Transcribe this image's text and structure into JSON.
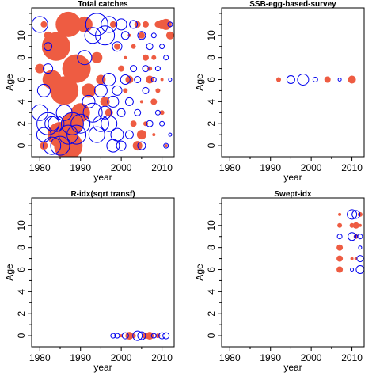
{
  "chart_data": [
    {
      "type": "scatter",
      "title": "Total catches",
      "xlabel": "year",
      "ylabel": "Age",
      "xlim": [
        1978,
        2013
      ],
      "ylim": [
        -1,
        12.5
      ],
      "xticks": [
        1980,
        1990,
        2000,
        2010
      ],
      "yticks": [
        0,
        2,
        4,
        6,
        8,
        10
      ],
      "series": [
        {
          "color": "#ee5c42",
          "points": [
            [
              1987,
              0,
              18
            ],
            [
              1985,
              1,
              16
            ],
            [
              1988,
              2,
              14
            ],
            [
              1990,
              3,
              12
            ],
            [
              1986,
              5,
              18
            ],
            [
              1989,
              7,
              18
            ],
            [
              1984,
              9,
              18
            ],
            [
              1987,
              11,
              16
            ],
            [
              1991,
              11,
              10
            ],
            [
              1983,
              6,
              12
            ],
            [
              1992,
              5,
              9
            ],
            [
              1994,
              8,
              7
            ],
            [
              1995,
              6,
              6
            ],
            [
              1996,
              4,
              6
            ],
            [
              1997,
              3,
              5
            ],
            [
              1998,
              11,
              4
            ],
            [
              1999,
              9,
              4
            ],
            [
              2000,
              7,
              4
            ],
            [
              2002,
              6,
              5
            ],
            [
              2003,
              2,
              4
            ],
            [
              2004,
              0,
              6
            ],
            [
              2005,
              10,
              4
            ],
            [
              2006,
              8,
              4
            ],
            [
              2007,
              6,
              5
            ],
            [
              2008,
              4,
              4
            ],
            [
              2009,
              11,
              4
            ],
            [
              2010,
              11,
              6
            ],
            [
              2011,
              11,
              7
            ],
            [
              2012,
              10,
              5
            ],
            [
              2005,
              1,
              6
            ],
            [
              2006,
              2,
              3
            ],
            [
              2003,
              9,
              3
            ],
            [
              2001,
              5,
              3
            ],
            [
              2008,
              8,
              3
            ],
            [
              2010,
              3,
              3
            ],
            [
              2007,
              7,
              3
            ],
            [
              2009,
              5,
              3
            ],
            [
              2004,
              11,
              4
            ],
            [
              2006,
              11,
              4
            ],
            [
              2002,
              10,
              2
            ],
            [
              2001,
              8,
              2
            ],
            [
              2005,
              4,
              2
            ],
            [
              2008,
              1,
              2
            ],
            [
              2010,
              6,
              2
            ],
            [
              2011,
              0,
              2
            ],
            [
              1981,
              0,
              5
            ],
            [
              1981,
              11,
              4
            ],
            [
              1982,
              10,
              5
            ],
            [
              1980,
              7,
              6
            ]
          ]
        },
        {
          "color": "#0000ee",
          "points": [
            [
              1980,
              11,
              10
            ],
            [
              1981,
              1,
              9
            ],
            [
              1980,
              3,
              10
            ],
            [
              1982,
              2,
              14
            ],
            [
              1981,
              5,
              8
            ],
            [
              1982,
              7,
              6
            ],
            [
              1982,
              9,
              5
            ],
            [
              1983,
              0,
              11
            ],
            [
              1984,
              2,
              10
            ],
            [
              1985,
              0,
              12
            ],
            [
              1986,
              3,
              10
            ],
            [
              1987,
              1,
              12
            ],
            [
              1988,
              2,
              14
            ],
            [
              1989,
              1,
              12
            ],
            [
              1990,
              2,
              12
            ],
            [
              1991,
              8,
              9
            ],
            [
              1992,
              4,
              8
            ],
            [
              1993,
              3,
              12
            ],
            [
              1993,
              10,
              10
            ],
            [
              1994,
              1,
              10
            ],
            [
              1994,
              11,
              14
            ],
            [
              1995,
              2,
              10
            ],
            [
              1995,
              5,
              8
            ],
            [
              1996,
              3,
              8
            ],
            [
              1996,
              10,
              12
            ],
            [
              1997,
              2,
              10
            ],
            [
              1997,
              6,
              8
            ],
            [
              1998,
              0,
              8
            ],
            [
              1998,
              4,
              7
            ],
            [
              1999,
              5,
              6
            ],
            [
              1999,
              9,
              6
            ],
            [
              2000,
              0,
              6
            ],
            [
              2000,
              3,
              5
            ],
            [
              2000,
              11,
              7
            ],
            [
              2001,
              6,
              6
            ],
            [
              2001,
              10,
              5
            ],
            [
              2002,
              1,
              5
            ],
            [
              2002,
              4,
              5
            ],
            [
              2003,
              7,
              4
            ],
            [
              2003,
              11,
              5
            ],
            [
              2004,
              3,
              4
            ],
            [
              2004,
              6,
              4
            ],
            [
              2005,
              0,
              5
            ],
            [
              2005,
              10,
              5
            ],
            [
              2006,
              5,
              4
            ],
            [
              2006,
              7,
              4
            ],
            [
              2007,
              2,
              4
            ],
            [
              2007,
              9,
              4
            ],
            [
              2008,
              6,
              3
            ],
            [
              2008,
              10,
              3
            ],
            [
              2009,
              3,
              3
            ],
            [
              2009,
              7,
              3
            ],
            [
              2010,
              2,
              3
            ],
            [
              2010,
              9,
              3
            ],
            [
              2011,
              0,
              3
            ],
            [
              2011,
              8,
              3
            ],
            [
              2012,
              1,
              2
            ],
            [
              2012,
              6,
              2
            ],
            [
              2012,
              11,
              3
            ],
            [
              1997,
              11,
              10
            ],
            [
              1999,
              1,
              8
            ],
            [
              1983,
              2,
              9
            ]
          ]
        }
      ]
    },
    {
      "type": "scatter",
      "title": "SSB-egg-based-survey",
      "xlabel": "year",
      "ylabel": "Age",
      "xlim": [
        1978,
        2013
      ],
      "ylim": [
        -1,
        12.5
      ],
      "xticks": [
        1980,
        1990,
        2000,
        2010
      ],
      "yticks": [
        0,
        2,
        4,
        6,
        8,
        10
      ],
      "series": [
        {
          "color": "#ee5c42",
          "points": [
            [
              1992,
              6,
              3
            ],
            [
              2004,
              6,
              4
            ],
            [
              2010,
              6,
              5
            ]
          ]
        },
        {
          "color": "#0000ee",
          "points": [
            [
              1995,
              6,
              5
            ],
            [
              1998,
              6,
              7
            ],
            [
              2001,
              6,
              3
            ],
            [
              2007,
              6,
              2
            ]
          ]
        }
      ]
    },
    {
      "type": "scatter",
      "title": "R-idx(sqrt transf)",
      "xlabel": "year",
      "ylabel": "Age",
      "xlim": [
        1978,
        2013
      ],
      "ylim": [
        -1,
        12.5
      ],
      "xticks": [
        1980,
        1990,
        2000,
        2010
      ],
      "yticks": [
        0,
        2,
        4,
        6,
        8,
        10
      ],
      "series": [
        {
          "color": "#ee5c42",
          "points": [
            [
              2000,
              0,
              2
            ],
            [
              2002,
              0,
              5
            ],
            [
              2003,
              0,
              3
            ],
            [
              2006,
              0,
              4
            ],
            [
              2007,
              0,
              5
            ],
            [
              2009,
              0,
              3
            ]
          ]
        },
        {
          "color": "#0000ee",
          "points": [
            [
              1998,
              0,
              3
            ],
            [
              1999,
              0,
              3
            ],
            [
              2001,
              0,
              4
            ],
            [
              2004,
              0,
              6
            ],
            [
              2005,
              0,
              5
            ],
            [
              2008,
              0,
              3
            ],
            [
              2010,
              0,
              4
            ],
            [
              2011,
              0,
              4
            ]
          ]
        }
      ]
    },
    {
      "type": "scatter",
      "title": "Swept-idx",
      "xlabel": "year",
      "ylabel": "Age",
      "xlim": [
        1978,
        2013
      ],
      "ylim": [
        -1,
        12.5
      ],
      "xticks": [
        1980,
        1990,
        2000,
        2010
      ],
      "yticks": [
        0,
        2,
        4,
        6,
        8,
        10
      ],
      "series": [
        {
          "color": "#ee5c42",
          "points": [
            [
              2007,
              6,
              4
            ],
            [
              2007,
              7,
              4
            ],
            [
              2007,
              8,
              4
            ],
            [
              2007,
              10,
              3
            ],
            [
              2007,
              11,
              2
            ],
            [
              2010,
              10,
              3
            ],
            [
              2011,
              10,
              4
            ],
            [
              2012,
              11,
              3
            ],
            [
              2011,
              7,
              2
            ],
            [
              2011,
              9,
              3
            ],
            [
              2010,
              7,
              2
            ],
            [
              2012,
              10,
              2
            ]
          ]
        },
        {
          "color": "#0000ee",
          "points": [
            [
              2007,
              9,
              3
            ],
            [
              2010,
              11,
              6
            ],
            [
              2011,
              11,
              5
            ],
            [
              2010,
              9,
              5
            ],
            [
              2011,
              9,
              2
            ],
            [
              2012,
              9,
              3
            ],
            [
              2012,
              8,
              2
            ],
            [
              2012,
              7,
              4
            ],
            [
              2010,
              6,
              2
            ],
            [
              2012,
              6,
              5
            ]
          ]
        }
      ]
    }
  ]
}
